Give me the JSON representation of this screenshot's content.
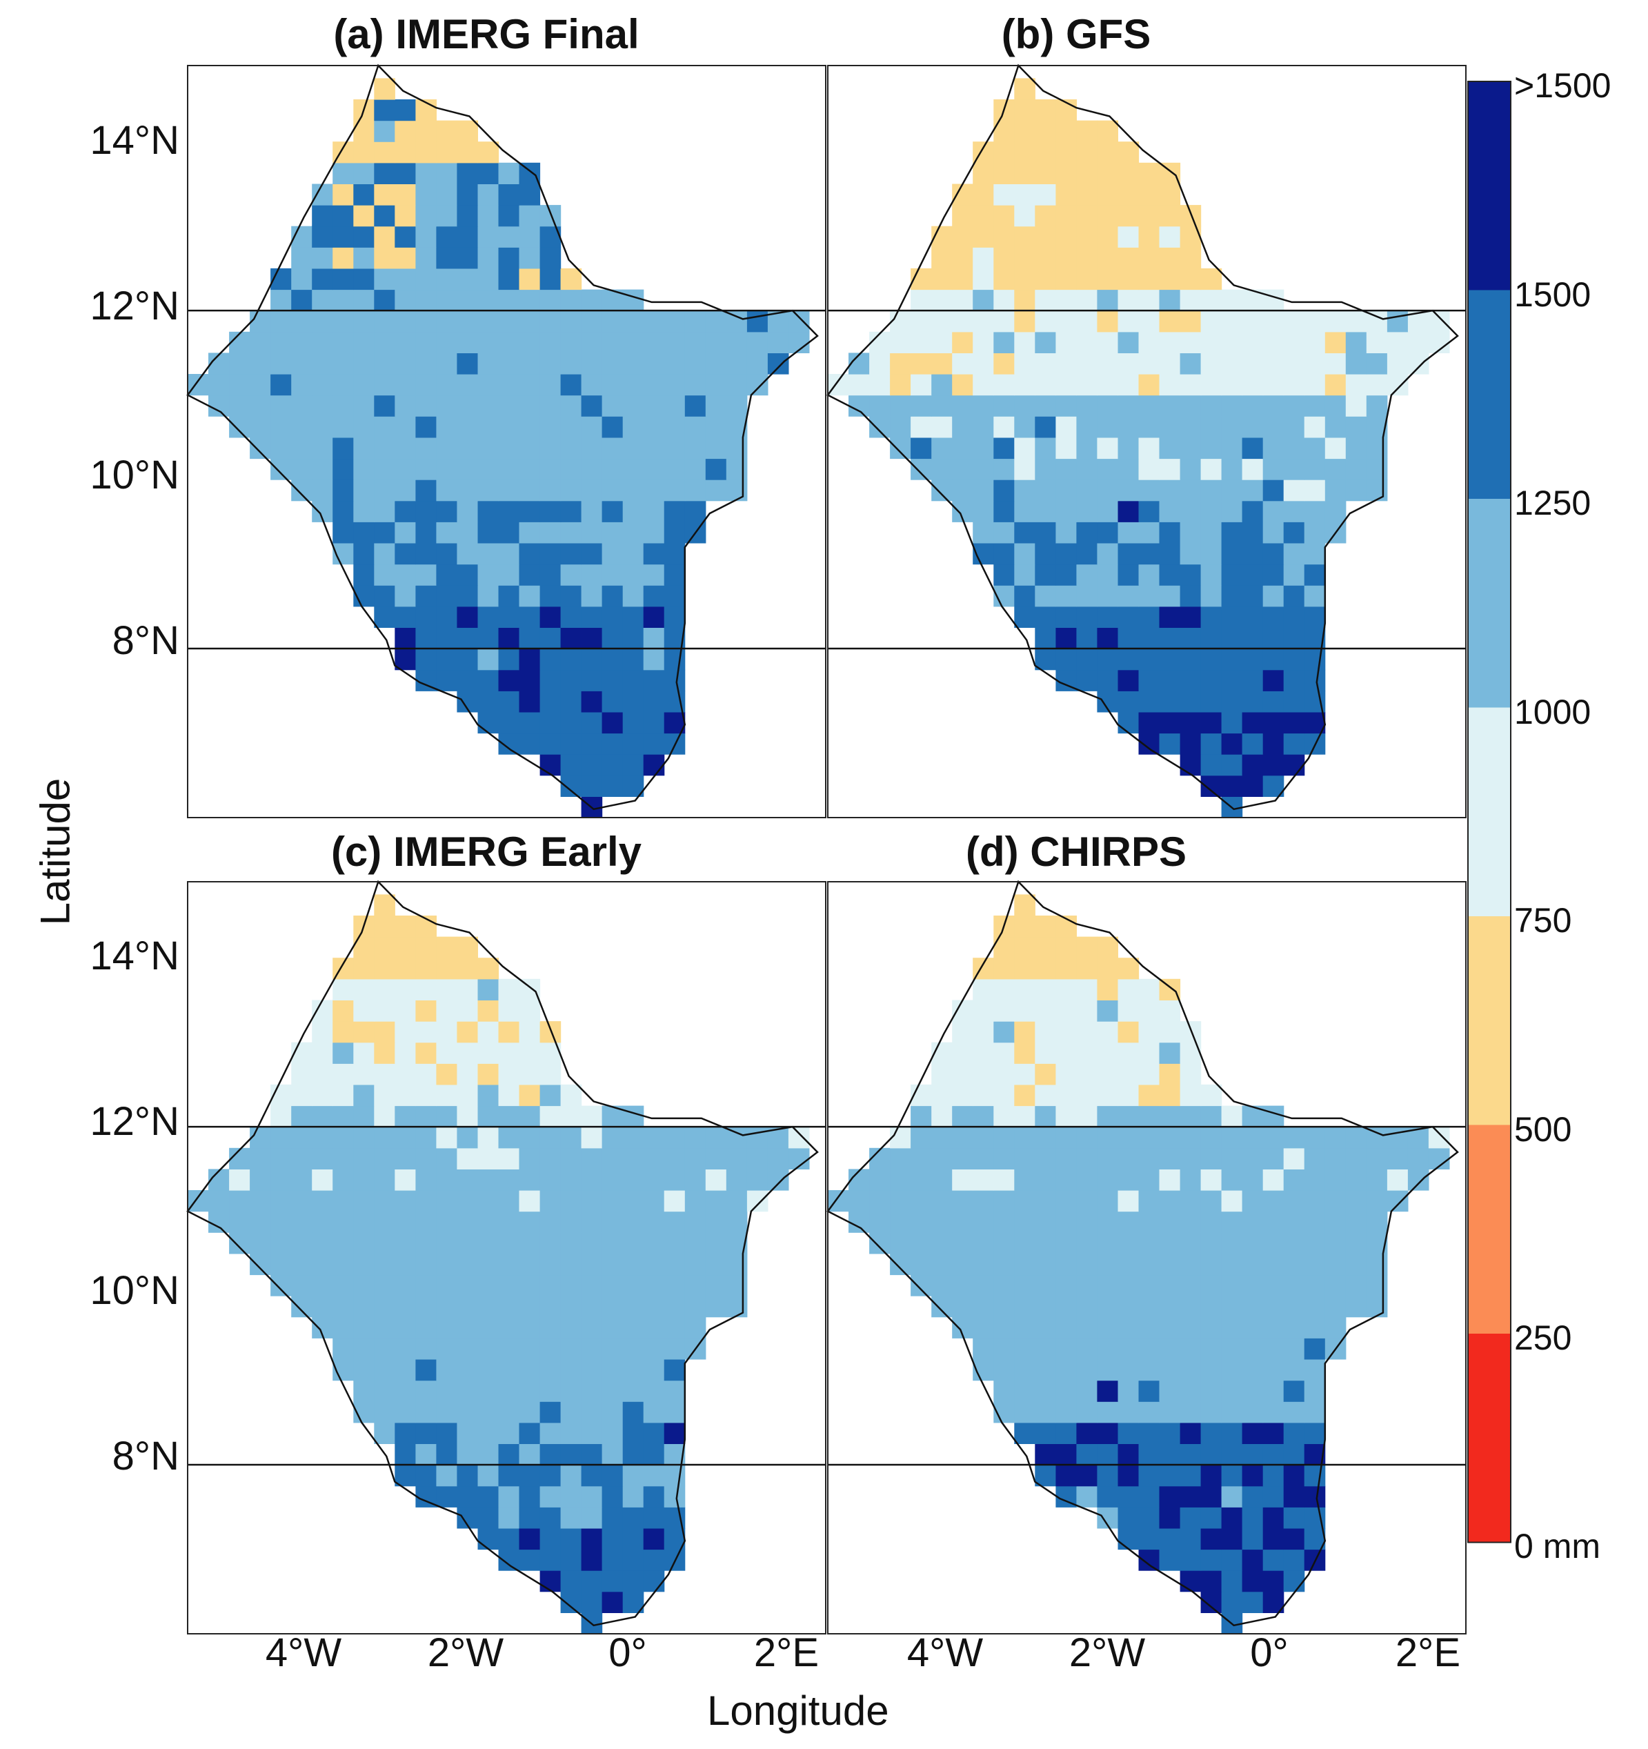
{
  "figure": {
    "y_axis_title": "Latitude",
    "x_axis_title": "Longitude",
    "lat_ticks": [
      "14°N",
      "12°N",
      "10°N",
      "8°N"
    ],
    "lon_ticks": [
      "4°W",
      "2°W",
      "0°",
      "2°E"
    ]
  },
  "panels": [
    {
      "title": "(a) IMERG Final"
    },
    {
      "title": "(b) GFS"
    },
    {
      "title": "(c) IMERG Early"
    },
    {
      "title": "(d) CHIRPS"
    }
  ],
  "colorbar": {
    "labels": [
      ">1500",
      "1500",
      "1250",
      "1000",
      "750",
      "500",
      "250",
      "0 mm"
    ],
    "colors": [
      "#0a1a8c",
      "#1f6fb4",
      "#79b9dc",
      "#dff2f5",
      "#fbd98c",
      "#fb8c55",
      "#f2291e"
    ]
  },
  "map_data": {
    "lat_range": [
      6.0,
      14.9
    ],
    "lon_range": [
      -5.3,
      2.4
    ],
    "cell_size_deg": 0.25,
    "class_breaks_mm": [
      0,
      250,
      500,
      750,
      1000,
      1250,
      1500
    ],
    "outline": [
      [
        -3.0,
        14.9
      ],
      [
        -2.7,
        14.6
      ],
      [
        -2.3,
        14.4
      ],
      [
        -1.9,
        14.3
      ],
      [
        -1.5,
        13.9
      ],
      [
        -1.1,
        13.6
      ],
      [
        -0.9,
        13.1
      ],
      [
        -0.7,
        12.6
      ],
      [
        -0.4,
        12.3
      ],
      [
        0.3,
        12.1
      ],
      [
        0.9,
        12.1
      ],
      [
        1.4,
        11.9
      ],
      [
        2.0,
        12.0
      ],
      [
        2.3,
        11.7
      ],
      [
        1.9,
        11.4
      ],
      [
        1.5,
        11.0
      ],
      [
        1.4,
        10.5
      ],
      [
        1.4,
        9.8
      ],
      [
        1.0,
        9.6
      ],
      [
        0.7,
        9.2
      ],
      [
        0.7,
        8.3
      ],
      [
        0.6,
        7.6
      ],
      [
        0.7,
        7.1
      ],
      [
        0.5,
        6.7
      ],
      [
        0.1,
        6.2
      ],
      [
        -0.4,
        6.1
      ],
      [
        -0.9,
        6.5
      ],
      [
        -1.4,
        6.8
      ],
      [
        -1.8,
        7.1
      ],
      [
        -2.0,
        7.4
      ],
      [
        -2.5,
        7.6
      ],
      [
        -2.8,
        7.8
      ],
      [
        -2.9,
        8.1
      ],
      [
        -3.2,
        8.5
      ],
      [
        -3.5,
        9.1
      ],
      [
        -3.7,
        9.6
      ],
      [
        -4.1,
        10.0
      ],
      [
        -4.5,
        10.4
      ],
      [
        -4.9,
        10.8
      ],
      [
        -5.3,
        11.0
      ],
      [
        -5.0,
        11.4
      ],
      [
        -4.5,
        11.9
      ],
      [
        -4.2,
        12.5
      ],
      [
        -3.9,
        13.1
      ],
      [
        -3.5,
        13.8
      ],
      [
        -3.2,
        14.3
      ]
    ],
    "zones_ranked_by_latitude_class": {
      "imerg_final": [
        1,
        4,
        3,
        3,
        4,
        5,
        5
      ],
      "gfs": [
        1,
        1,
        2,
        3,
        4,
        5,
        6
      ],
      "imerg_early": [
        1,
        2,
        3,
        3,
        3,
        4,
        5
      ],
      "chirps": [
        1,
        2,
        3,
        3,
        3,
        5,
        6
      ]
    }
  }
}
